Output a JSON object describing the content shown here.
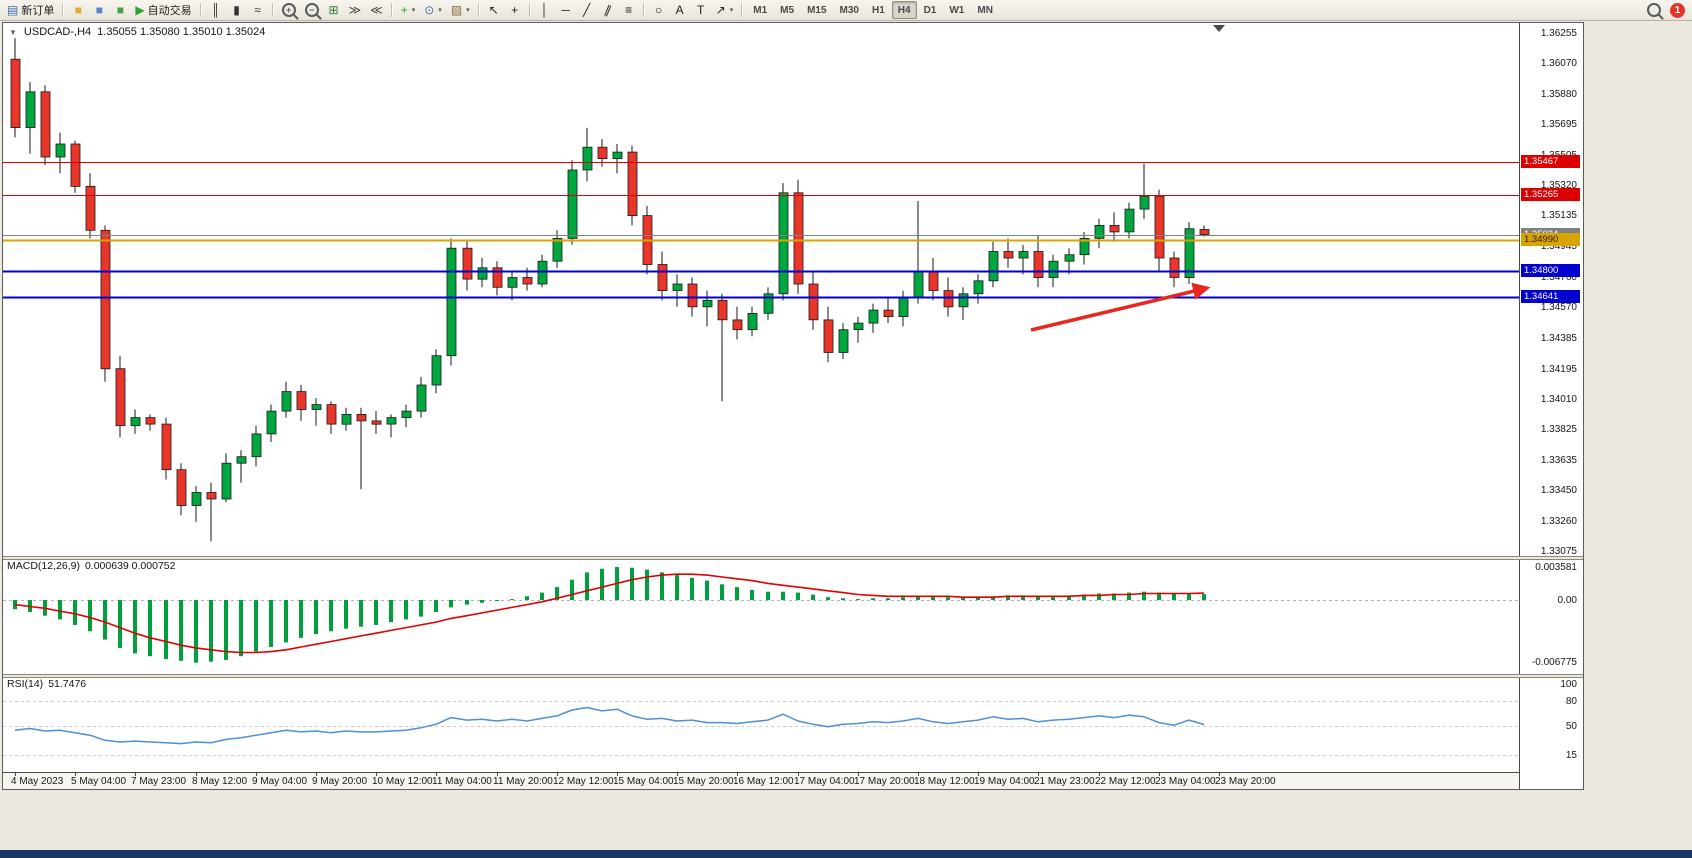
{
  "toolbar": {
    "items": [
      {
        "n": "new-order-button",
        "icon": "document-icon",
        "g": "▤",
        "gc": "#3f6fb5",
        "label": "新订单"
      },
      {
        "n": "separator"
      },
      {
        "n": "toolbox-button",
        "icon": "toolbox-icon",
        "g": "■",
        "gc": "#e0a830"
      },
      {
        "n": "market-watch-button",
        "icon": "market-watch-icon",
        "g": "■",
        "gc": "#5b82cf"
      },
      {
        "n": "strategy-tester-button",
        "icon": "refresh-icon",
        "g": "■",
        "gc": "#45a04a"
      },
      {
        "n": "auto-trading-button",
        "icon": "play-icon",
        "g": "▶",
        "gc": "#2da52d",
        "label": "自动交易"
      },
      {
        "n": "separator"
      },
      {
        "n": "bar-chart-button",
        "icon": "bar-chart-icon",
        "g": "║",
        "gc": "#333333"
      },
      {
        "n": "candlestick-chart-button",
        "icon": "candlestick-icon",
        "g": "▮",
        "gc": "#333333"
      },
      {
        "n": "line-chart-button",
        "icon": "line-chart-icon",
        "g": "≈",
        "gc": "#333333"
      },
      {
        "n": "separator"
      },
      {
        "n": "zoom-in-button",
        "icon": "zoom-in-icon",
        "mag": "+"
      },
      {
        "n": "zoom-out-button",
        "icon": "zoom-out-icon",
        "mag": "−"
      },
      {
        "n": "tile-windows-button",
        "icon": "tile-windows-icon",
        "g": "⊞",
        "gc": "#2f7d36"
      },
      {
        "n": "auto-scroll-button",
        "icon": "auto-scroll-icon",
        "g": "≫",
        "gc": "#444444"
      },
      {
        "n": "chart-shift-button",
        "icon": "chart-shift-icon",
        "g": "≪",
        "gc": "#444444"
      },
      {
        "n": "separator"
      },
      {
        "n": "indicators-button",
        "icon": "indicators-icon",
        "g": "+",
        "gc": "#2da52d",
        "dd": true
      },
      {
        "n": "periods-button",
        "icon": "clock-icon",
        "g": "⊙",
        "gc": "#3f6fb5",
        "dd": true
      },
      {
        "n": "templates-button",
        "icon": "template-icon",
        "g": "▧",
        "gc": "#8a6d3b",
        "dd": true
      },
      {
        "n": "separator"
      },
      {
        "n": "cursor-button",
        "icon": "cursor-icon",
        "g": "↖",
        "gc": "#222222"
      },
      {
        "n": "crosshair-button",
        "icon": "crosshair-icon",
        "g": "+",
        "gc": "#222222"
      },
      {
        "n": "separator"
      },
      {
        "n": "vertical-line-button",
        "icon": "vertical-line-icon",
        "g": "│",
        "gc": "#222222"
      },
      {
        "n": "horizontal-line-button",
        "icon": "horizontal-line-icon",
        "g": "─",
        "gc": "#222222"
      },
      {
        "n": "trendline-button",
        "icon": "trendline-icon",
        "g": "╱",
        "gc": "#222222"
      },
      {
        "n": "channel-button",
        "icon": "channel-icon",
        "g": "∥",
        "gc": "#222222",
        "rot": true
      },
      {
        "n": "fibonacci-button",
        "icon": "fibonacci-icon",
        "g": "≡",
        "gc": "#222222"
      },
      {
        "n": "separator"
      },
      {
        "n": "shapes-button",
        "icon": "ellipse-icon",
        "g": "○",
        "gc": "#222222"
      },
      {
        "n": "text-button",
        "icon": "text-icon",
        "g": "A",
        "gc": "#222222"
      },
      {
        "n": "text-label-button",
        "icon": "label-icon",
        "g": "T",
        "gc": "#222222"
      },
      {
        "n": "arrows-button",
        "icon": "arrow-icon",
        "g": "↗",
        "gc": "#222222",
        "dd": true
      },
      {
        "n": "separator"
      }
    ],
    "timeframes": [
      "M1",
      "M5",
      "M15",
      "M30",
      "H1",
      "H4",
      "D1",
      "W1",
      "MN"
    ],
    "active_timeframe": "H4",
    "notification_count": "1"
  },
  "chart": {
    "symbol_period": "USDCAD-,H4",
    "ohlc_text": "1.35055 1.35080 1.35010 1.35024",
    "price_axis": [
      "1.36255",
      "1.36070",
      "1.35880",
      "1.35695",
      "1.35505",
      "1.35320",
      "1.35135",
      "1.34945",
      "1.34760",
      "1.34570",
      "1.34385",
      "1.34195",
      "1.34010",
      "1.33825",
      "1.33635",
      "1.33450",
      "1.33260",
      "1.33075"
    ],
    "time_axis": [
      "4 May 2023",
      "5 May 04:00",
      "7 May 23:00",
      "8 May 12:00",
      "9 May 04:00",
      "9 May 20:00",
      "10 May 12:00",
      "11 May 04:00",
      "11 May 20:00",
      "12 May 12:00",
      "15 May 04:00",
      "15 May 20:00",
      "16 May 12:00",
      "17 May 04:00",
      "17 May 20:00",
      "18 May 12:00",
      "19 May 04:00",
      "21 May 23:00",
      "22 May 12:00",
      "23 May 04:00",
      "23 May 20:00"
    ],
    "colors": {
      "bull": "#00a63e",
      "bear": "#e8362a",
      "outline": "#1a1a1a",
      "macd_hist": "#00a03e",
      "macd_signal": "#e00000",
      "rsi_line": "#4f8fd3",
      "level_red": "#dd0000",
      "level_blue": "#0000d0",
      "level_gold": "#d9a400",
      "level_gray": "#808080",
      "arrow": "#e8281e"
    }
  },
  "macd": {
    "title": "MACD(12,26,9)",
    "values": "0.000639 0.000752",
    "axis": [
      "0.003581",
      "0.00",
      "-0.006775"
    ]
  },
  "rsi": {
    "title": "RSI(14)",
    "value": "51.7476",
    "axis": [
      "100",
      "80",
      "50",
      "15"
    ],
    "grid_levels": [
      80,
      50,
      15
    ]
  },
  "chart_data": {
    "type": "candlestick",
    "symbol": "USDCAD",
    "timeframe": "H4",
    "price_range": [
      1.33075,
      1.36255
    ],
    "candles": [
      [
        1.361,
        1.3623,
        1.3562,
        1.3568
      ],
      [
        1.3568,
        1.3596,
        1.3552,
        1.359
      ],
      [
        1.359,
        1.3594,
        1.3545,
        1.355
      ],
      [
        1.355,
        1.3565,
        1.354,
        1.3558
      ],
      [
        1.3558,
        1.356,
        1.3528,
        1.3532
      ],
      [
        1.3532,
        1.354,
        1.35,
        1.3505
      ],
      [
        1.3505,
        1.3508,
        1.3412,
        1.342
      ],
      [
        1.342,
        1.3428,
        1.3378,
        1.3385
      ],
      [
        1.3385,
        1.3395,
        1.338,
        1.339
      ],
      [
        1.339,
        1.3392,
        1.3382,
        1.3386
      ],
      [
        1.3386,
        1.339,
        1.3352,
        1.3358
      ],
      [
        1.3358,
        1.3362,
        1.333,
        1.3336
      ],
      [
        1.3336,
        1.3348,
        1.3326,
        1.3344
      ],
      [
        1.3344,
        1.335,
        1.3314,
        1.334
      ],
      [
        1.334,
        1.3368,
        1.3338,
        1.3362
      ],
      [
        1.3362,
        1.337,
        1.335,
        1.3366
      ],
      [
        1.3366,
        1.3385,
        1.336,
        1.338
      ],
      [
        1.338,
        1.3398,
        1.3375,
        1.3394
      ],
      [
        1.3394,
        1.3412,
        1.339,
        1.3406
      ],
      [
        1.3406,
        1.341,
        1.3388,
        1.3395
      ],
      [
        1.3395,
        1.3402,
        1.3385,
        1.3398
      ],
      [
        1.3398,
        1.34,
        1.338,
        1.3386
      ],
      [
        1.3386,
        1.3396,
        1.3382,
        1.3392
      ],
      [
        1.3392,
        1.3396,
        1.3346,
        1.3388
      ],
      [
        1.3388,
        1.3394,
        1.338,
        1.3386
      ],
      [
        1.3386,
        1.3392,
        1.3378,
        1.339
      ],
      [
        1.339,
        1.3398,
        1.3384,
        1.3394
      ],
      [
        1.3394,
        1.3415,
        1.339,
        1.341
      ],
      [
        1.341,
        1.3432,
        1.3405,
        1.3428
      ],
      [
        1.3428,
        1.35,
        1.3422,
        1.3494
      ],
      [
        1.3494,
        1.3499,
        1.3468,
        1.3475
      ],
      [
        1.3475,
        1.3488,
        1.347,
        1.3482
      ],
      [
        1.3482,
        1.3486,
        1.3465,
        1.347
      ],
      [
        1.347,
        1.348,
        1.3462,
        1.3476
      ],
      [
        1.3476,
        1.3482,
        1.3468,
        1.3472
      ],
      [
        1.3472,
        1.349,
        1.347,
        1.3486
      ],
      [
        1.3486,
        1.3505,
        1.3482,
        1.35
      ],
      [
        1.35,
        1.3548,
        1.3496,
        1.3542
      ],
      [
        1.3542,
        1.3568,
        1.3535,
        1.3556
      ],
      [
        1.3556,
        1.3561,
        1.3544,
        1.3549
      ],
      [
        1.3549,
        1.3558,
        1.354,
        1.3553
      ],
      [
        1.3553,
        1.3557,
        1.3508,
        1.3514
      ],
      [
        1.3514,
        1.352,
        1.3478,
        1.3484
      ],
      [
        1.3484,
        1.3492,
        1.3462,
        1.3468
      ],
      [
        1.3468,
        1.3478,
        1.3458,
        1.3472
      ],
      [
        1.3472,
        1.3476,
        1.3452,
        1.3458
      ],
      [
        1.3458,
        1.3468,
        1.3446,
        1.3462
      ],
      [
        1.3462,
        1.3466,
        1.34,
        1.345
      ],
      [
        1.345,
        1.3458,
        1.3438,
        1.3444
      ],
      [
        1.3444,
        1.3458,
        1.344,
        1.3454
      ],
      [
        1.3454,
        1.347,
        1.345,
        1.3466
      ],
      [
        1.3466,
        1.3534,
        1.3462,
        1.3528
      ],
      [
        1.3528,
        1.3536,
        1.3466,
        1.3472
      ],
      [
        1.3472,
        1.348,
        1.3444,
        1.345
      ],
      [
        1.345,
        1.3458,
        1.3424,
        1.343
      ],
      [
        1.343,
        1.3448,
        1.3426,
        1.3444
      ],
      [
        1.3444,
        1.3452,
        1.3436,
        1.3448
      ],
      [
        1.3448,
        1.346,
        1.3442,
        1.3456
      ],
      [
        1.3456,
        1.3464,
        1.3448,
        1.3452
      ],
      [
        1.3452,
        1.3468,
        1.3446,
        1.3464
      ],
      [
        1.3464,
        1.3523,
        1.346,
        1.348
      ],
      [
        1.348,
        1.3488,
        1.3462,
        1.3468
      ],
      [
        1.3468,
        1.3476,
        1.3452,
        1.3458
      ],
      [
        1.3458,
        1.347,
        1.345,
        1.3466
      ],
      [
        1.3466,
        1.3478,
        1.346,
        1.3474
      ],
      [
        1.3474,
        1.3498,
        1.347,
        1.3492
      ],
      [
        1.3492,
        1.35,
        1.3482,
        1.3488
      ],
      [
        1.3488,
        1.3496,
        1.3478,
        1.3492
      ],
      [
        1.3492,
        1.3502,
        1.347,
        1.3476
      ],
      [
        1.3476,
        1.349,
        1.347,
        1.3486
      ],
      [
        1.3486,
        1.3494,
        1.3478,
        1.349
      ],
      [
        1.349,
        1.3504,
        1.3484,
        1.35
      ],
      [
        1.35,
        1.3512,
        1.3494,
        1.3508
      ],
      [
        1.3508,
        1.3516,
        1.3498,
        1.3504
      ],
      [
        1.3504,
        1.3522,
        1.35,
        1.3518
      ],
      [
        1.3518,
        1.3546,
        1.3512,
        1.3526
      ],
      [
        1.3526,
        1.353,
        1.348,
        1.3488
      ],
      [
        1.3488,
        1.3492,
        1.347,
        1.3476
      ],
      [
        1.3476,
        1.351,
        1.3472,
        1.3506
      ],
      [
        1.35055,
        1.3508,
        1.3501,
        1.35024
      ]
    ],
    "levels": [
      {
        "price": 1.35467,
        "label": "1.35467",
        "color": "#dd0000",
        "text": "#ffffff",
        "width": 1
      },
      {
        "price": 1.35265,
        "label": "1.35265",
        "color": "#dd0000",
        "text": "#ffffff",
        "width": 1
      },
      {
        "price": 1.35024,
        "label": "1.35024",
        "color": "#808080",
        "text": "#ffffff",
        "width": 1
      },
      {
        "price": 1.3499,
        "label": "1.34990",
        "color": "#d9a400",
        "text": "#241a00",
        "width": 2
      },
      {
        "price": 1.348,
        "label": "1.34800",
        "color": "#0000d0",
        "text": "#ffffff",
        "width": 2
      },
      {
        "price": 1.34641,
        "label": "1.34641",
        "color": "#0000d0",
        "text": "#ffffff",
        "width": 2
      }
    ],
    "macd_range": [
      -0.006775,
      0.003581
    ],
    "macd_histogram": [
      -0.001,
      -0.0013,
      -0.0017,
      -0.0021,
      -0.0027,
      -0.0034,
      -0.0043,
      -0.0052,
      -0.0058,
      -0.0061,
      -0.0064,
      -0.0066,
      -0.0068,
      -0.0067,
      -0.0065,
      -0.0061,
      -0.0056,
      -0.0051,
      -0.0046,
      -0.0041,
      -0.0037,
      -0.0034,
      -0.0031,
      -0.0029,
      -0.0027,
      -0.0024,
      -0.0021,
      -0.0018,
      -0.0013,
      -0.0008,
      -0.0005,
      -0.0003,
      -0.0001,
      0.0001,
      0.0004,
      0.0008,
      0.0014,
      0.0022,
      0.003,
      0.0034,
      0.003581,
      0.0035,
      0.0033,
      0.003,
      0.0027,
      0.0024,
      0.0021,
      0.0017,
      0.0014,
      0.0011,
      0.0009,
      0.0009,
      0.0008,
      0.0006,
      0.0003,
      0.0002,
      0.0001,
      0.0002,
      0.0002,
      0.0003,
      0.0004,
      0.0004,
      0.0003,
      0.0003,
      0.0003,
      0.0004,
      0.0005,
      0.0005,
      0.0004,
      0.0004,
      0.0005,
      0.0006,
      0.0007,
      0.0007,
      0.0008,
      0.0009,
      0.0008,
      0.0007,
      0.0007,
      0.000639
    ],
    "macd_signal": [
      -0.0005,
      -0.0007,
      -0.0009,
      -0.0012,
      -0.0015,
      -0.0019,
      -0.0024,
      -0.003,
      -0.0036,
      -0.0041,
      -0.0045,
      -0.0049,
      -0.0052,
      -0.0054,
      -0.0056,
      -0.0057,
      -0.0057,
      -0.0056,
      -0.0054,
      -0.0051,
      -0.0048,
      -0.0045,
      -0.0042,
      -0.0039,
      -0.0036,
      -0.0033,
      -0.003,
      -0.0027,
      -0.0024,
      -0.002,
      -0.0017,
      -0.0014,
      -0.0011,
      -0.0008,
      -0.0005,
      -0.0002,
      0.0002,
      0.0006,
      0.001,
      0.0014,
      0.0018,
      0.0022,
      0.0025,
      0.0027,
      0.0028,
      0.0028,
      0.0027,
      0.0025,
      0.0023,
      0.0021,
      0.0018,
      0.0016,
      0.0014,
      0.0012,
      0.001,
      0.0008,
      0.0006,
      0.0005,
      0.0004,
      0.0004,
      0.0004,
      0.0004,
      0.0004,
      0.0003,
      0.0003,
      0.0003,
      0.0004,
      0.0004,
      0.0004,
      0.0004,
      0.0004,
      0.0005,
      0.0005,
      0.0006,
      0.0006,
      0.0007,
      0.0007,
      0.0007,
      0.0007,
      0.000752
    ],
    "rsi_range": [
      0,
      100
    ],
    "rsi_values": [
      45,
      47,
      44,
      45,
      42,
      39,
      33,
      31,
      32,
      31,
      30,
      29,
      31,
      30,
      34,
      36,
      39,
      42,
      45,
      43,
      44,
      42,
      44,
      43,
      43,
      44,
      45,
      48,
      52,
      60,
      57,
      58,
      56,
      58,
      56,
      59,
      62,
      69,
      72,
      68,
      70,
      62,
      58,
      59,
      56,
      57,
      54,
      54,
      53,
      55,
      57,
      64,
      56,
      52,
      49,
      52,
      53,
      55,
      54,
      56,
      59,
      55,
      53,
      55,
      57,
      61,
      58,
      59,
      55,
      57,
      58,
      60,
      62,
      60,
      63,
      61,
      54,
      51,
      57,
      51.75
    ],
    "annotations": {
      "arrow": {
        "from": [
          67.5,
          1.3444
        ],
        "to": [
          79.2,
          1.34695
        ]
      }
    }
  }
}
